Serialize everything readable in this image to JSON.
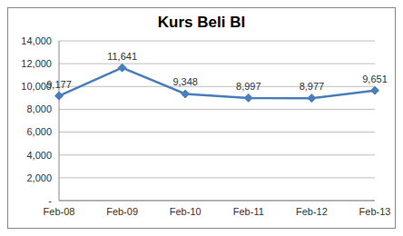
{
  "chart_data": {
    "type": "line",
    "title": "Kurs Beli BI",
    "categories": [
      "Feb-08",
      "Feb-09",
      "Feb-10",
      "Feb-11",
      "Feb-12",
      "Feb-13"
    ],
    "values": [
      9177,
      11641,
      9348,
      8997,
      8977,
      9651
    ],
    "value_labels": [
      "9,177",
      "11,641",
      "9,348",
      "8,997",
      "8,977",
      "9,651"
    ],
    "data_labels": true,
    "color": "#4a7ebb",
    "marker": "diamond",
    "ylim": [
      0,
      14000
    ],
    "yticks": [
      {
        "value": 0,
        "label": "-"
      },
      {
        "value": 2000,
        "label": "2,000"
      },
      {
        "value": 4000,
        "label": "4,000"
      },
      {
        "value": 6000,
        "label": "6,000"
      },
      {
        "value": 8000,
        "label": "8,000"
      },
      {
        "value": 10000,
        "label": "10,000"
      },
      {
        "value": 12000,
        "label": "12,000"
      },
      {
        "value": 14000,
        "label": "14,000"
      }
    ],
    "grid": true
  }
}
